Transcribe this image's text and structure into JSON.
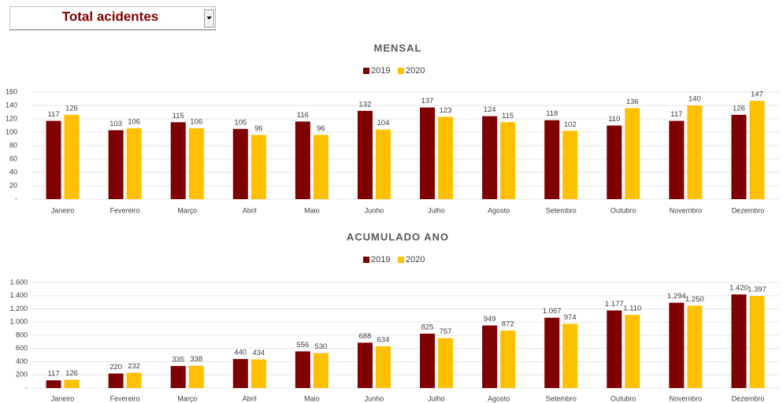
{
  "dropdown": {
    "label": "Total acidentes"
  },
  "chart_data": [
    {
      "type": "bar",
      "title": "MENSAL",
      "categories": [
        "Janeiro",
        "Fevereiro",
        "Março",
        "Abril",
        "Maio",
        "Junho",
        "Julho",
        "Agosto",
        "Setembro",
        "Outubro",
        "Novembro",
        "Dezembro"
      ],
      "series": [
        {
          "name": "2019",
          "color": "#7f0000",
          "values": [
            117,
            103,
            115,
            105,
            116,
            132,
            137,
            124,
            118,
            110,
            117,
            126
          ]
        },
        {
          "name": "2020",
          "color": "#ffc000",
          "values": [
            126,
            106,
            106,
            96,
            96,
            104,
            123,
            115,
            102,
            136,
            140,
            147
          ]
        }
      ],
      "ylim": [
        0,
        160
      ],
      "yticks": [
        {
          "value": 0,
          "label": "-"
        },
        20,
        40,
        60,
        80,
        100,
        120,
        140,
        160
      ],
      "grid": true,
      "legend": "top"
    },
    {
      "type": "bar",
      "title": "ACUMULADO ANO",
      "categories": [
        "Janeiro",
        "Fevereiro",
        "Março",
        "Abril",
        "Maio",
        "Junho",
        "Julho",
        "Agosto",
        "Setembro",
        "Outubro",
        "Novembro",
        "Dezembro"
      ],
      "series": [
        {
          "name": "2019",
          "color": "#7f0000",
          "values": [
            117,
            220,
            335,
            440,
            556,
            688,
            825,
            949,
            1067,
            1177,
            1294,
            1420
          ],
          "value_labels": [
            "117",
            "220",
            "335",
            "440",
            "556",
            "688",
            "825",
            "949",
            "1.067",
            "1.177",
            "1.294",
            "1.420"
          ]
        },
        {
          "name": "2020",
          "color": "#ffc000",
          "values": [
            126,
            232,
            338,
            434,
            530,
            634,
            757,
            872,
            974,
            1110,
            1250,
            1397
          ],
          "value_labels": [
            "126",
            "232",
            "338",
            "434",
            "530",
            "634",
            "757",
            "872",
            "974",
            "1.110",
            "1.250",
            "1.397"
          ]
        }
      ],
      "ylim": [
        0,
        1600
      ],
      "yticks": [
        {
          "value": 0,
          "label": "-"
        },
        200,
        400,
        600,
        800,
        {
          "value": 1000,
          "label": "1.000"
        },
        {
          "value": 1200,
          "label": "1.200"
        },
        {
          "value": 1400,
          "label": "1.400"
        },
        {
          "value": 1600,
          "label": "1.600"
        }
      ],
      "grid": true,
      "legend": "top"
    }
  ]
}
